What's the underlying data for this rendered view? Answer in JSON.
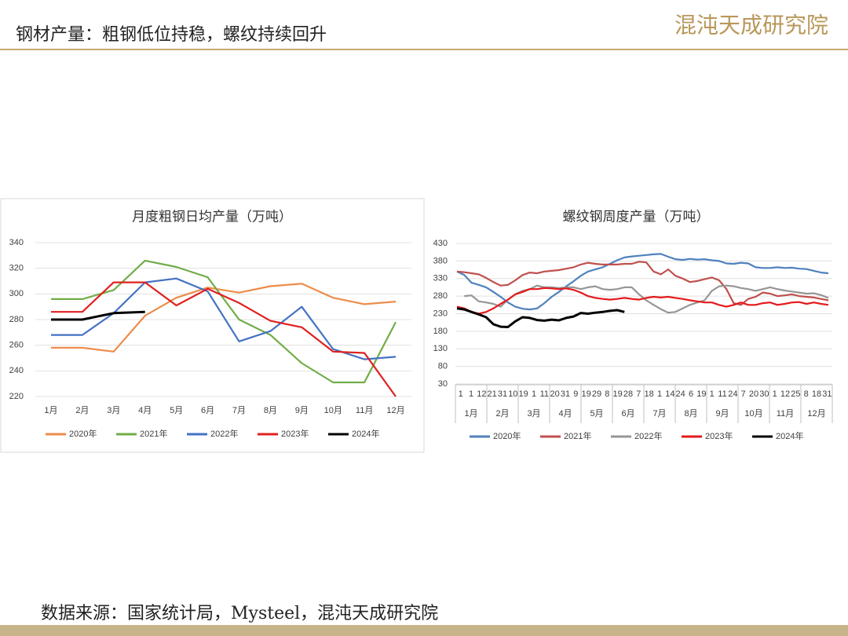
{
  "header": {
    "title": "钢材产量：粗钢低位持稳，螺纹持续回升",
    "logo": "混沌天成研究院"
  },
  "source": "数据来源：国家统计局，Mysteel，混沌天成研究院",
  "chart_data": [
    {
      "type": "line",
      "title": "月度粗钢日均产量（万吨）",
      "categories": [
        "1月",
        "2月",
        "3月",
        "4月",
        "5月",
        "6月",
        "7月",
        "8月",
        "9月",
        "10月",
        "11月",
        "12月"
      ],
      "ylim": [
        220,
        340
      ],
      "yticks": [
        220,
        240,
        260,
        280,
        300,
        320,
        340
      ],
      "grid": true,
      "series": [
        {
          "name": "2020年",
          "color": "#ed8c4b",
          "values": [
            258,
            258,
            255,
            283,
            297,
            305,
            301,
            306,
            308,
            297,
            292,
            294
          ]
        },
        {
          "name": "2021年",
          "color": "#70ad47",
          "values": [
            296,
            296,
            303,
            326,
            321,
            313,
            280,
            268,
            246,
            231,
            231,
            278
          ]
        },
        {
          "name": "2022年",
          "color": "#4472c4",
          "values": [
            268,
            268,
            285,
            309,
            312,
            302,
            263,
            271,
            290,
            257,
            249,
            251
          ]
        },
        {
          "name": "2023年",
          "color": "#e02020",
          "values": [
            286,
            286,
            309,
            309,
            291,
            304,
            293,
            279,
            274,
            255,
            254,
            220
          ]
        },
        {
          "name": "2024年",
          "color": "#000000",
          "values": [
            280,
            280,
            285,
            286,
            null,
            null,
            null,
            null,
            null,
            null,
            null,
            null
          ]
        }
      ]
    },
    {
      "type": "line",
      "title": "螺纹钢周度产量（万吨）",
      "x_tick_labels": [
        "1",
        "1",
        "12",
        "21",
        "31",
        "10",
        "19",
        "1",
        "11",
        "20",
        "31",
        "9",
        "19",
        "29",
        "8",
        "19",
        "28",
        "7",
        "18",
        "1",
        "14",
        "24",
        "6",
        "19",
        "1",
        "11",
        "24",
        "7",
        "20",
        "30",
        "1",
        "12",
        "25",
        "8",
        "18",
        "31"
      ],
      "x_group_labels": [
        "1月",
        "2月",
        "3月",
        "4月",
        "5月",
        "6月",
        "7月",
        "8月",
        "9月",
        "10月",
        "11月",
        "12月"
      ],
      "ylim": [
        30,
        430
      ],
      "yticks": [
        30,
        80,
        130,
        180,
        230,
        280,
        330,
        380,
        430
      ],
      "grid": true,
      "series": [
        {
          "name": "2020年",
          "color": "#4f81bd",
          "values": [
            350,
            340,
            318,
            312,
            305,
            292,
            278,
            262,
            250,
            244,
            242,
            245,
            260,
            278,
            292,
            308,
            322,
            338,
            350,
            356,
            362,
            372,
            382,
            390,
            393,
            395,
            397,
            399,
            400,
            392,
            385,
            383,
            386,
            384,
            385,
            382,
            380,
            373,
            372,
            375,
            373,
            362,
            360,
            360,
            362,
            360,
            361,
            358,
            357,
            352,
            347,
            345
          ]
        },
        {
          "name": "2021年",
          "color": "#c0504d",
          "values": [
            350,
            348,
            345,
            342,
            332,
            320,
            310,
            312,
            325,
            340,
            347,
            345,
            350,
            352,
            354,
            358,
            362,
            370,
            375,
            372,
            370,
            370,
            370,
            372,
            372,
            378,
            376,
            350,
            342,
            356,
            338,
            330,
            320,
            323,
            328,
            333,
            325,
            300,
            260,
            255,
            272,
            278,
            290,
            287,
            280,
            282,
            285,
            280,
            278,
            276,
            272,
            268
          ]
        },
        {
          "name": "2022年",
          "color": "#969696",
          "values": [
            null,
            280,
            282,
            265,
            262,
            258,
            250,
            270,
            285,
            295,
            300,
            310,
            305,
            305,
            303,
            305,
            305,
            300,
            305,
            308,
            300,
            298,
            300,
            305,
            305,
            285,
            268,
            255,
            243,
            233,
            235,
            245,
            255,
            262,
            268,
            295,
            308,
            310,
            308,
            303,
            300,
            295,
            300,
            305,
            300,
            296,
            293,
            290,
            287,
            288,
            283,
            275
          ]
        },
        {
          "name": "2023年",
          "color": "#e41a1c",
          "values": [
            250,
            245,
            235,
            230,
            235,
            245,
            258,
            270,
            285,
            292,
            300,
            300,
            303,
            302,
            300,
            302,
            298,
            290,
            280,
            275,
            272,
            270,
            272,
            275,
            272,
            270,
            275,
            278,
            276,
            278,
            275,
            272,
            268,
            265,
            262,
            262,
            255,
            250,
            255,
            262,
            255,
            255,
            260,
            262,
            255,
            258,
            262,
            263,
            258,
            262,
            258,
            255
          ]
        },
        {
          "name": "2024年",
          "color": "#000000",
          "values": [
            245,
            242,
            235,
            228,
            220,
            200,
            193,
            192,
            208,
            220,
            218,
            212,
            210,
            213,
            211,
            218,
            222,
            232,
            230,
            233,
            235,
            238,
            240,
            235,
            null,
            null,
            null,
            null,
            null,
            null,
            null,
            null,
            null,
            null,
            null,
            null,
            null,
            null,
            null,
            null,
            null,
            null,
            null,
            null,
            null,
            null,
            null,
            null,
            null,
            null,
            null,
            null
          ]
        }
      ]
    }
  ]
}
